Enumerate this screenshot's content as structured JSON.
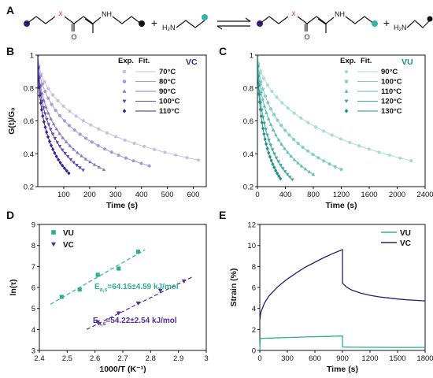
{
  "panel_letters": {
    "A": "A",
    "B": "B",
    "C": "C",
    "D": "D",
    "E": "E"
  },
  "scheme": {
    "atom_x": "x",
    "atom_nh": "NH",
    "amine": "H₂N",
    "plus": "+",
    "colors": {
      "purple": "#3b1a7c",
      "teal": "#2fb4a5",
      "red": "#e83a3a",
      "black": "#111111"
    }
  },
  "chart_data": [
    {
      "panel": "B",
      "type": "scatter",
      "title": "VC",
      "xlabel": "Time (s)",
      "ylabel": "G(t)/G₀",
      "xlim": [
        0,
        650
      ],
      "ylim": [
        0.2,
        1.0
      ],
      "xticks": [
        100,
        200,
        300,
        400,
        500,
        600
      ],
      "yticks": [
        0.2,
        0.4,
        0.6,
        0.8,
        1.0
      ],
      "legend_header": [
        "Exp.",
        "Fit."
      ],
      "legend_position": "top-right",
      "series": [
        {
          "name": "70°C",
          "color": "#c7bfe3",
          "marker": "circle",
          "tau": 600,
          "beta": 0.55,
          "tmax": 620
        },
        {
          "name": "80°C",
          "color": "#a89ad4",
          "marker": "circle",
          "tau": 350,
          "beta": 0.55,
          "tmax": 430
        },
        {
          "name": "90°C",
          "color": "#8a78c4",
          "marker": "triangle-up",
          "tau": 185,
          "beta": 0.55,
          "tmax": 255
        },
        {
          "name": "100°C",
          "color": "#5f4aaa",
          "marker": "triangle-down",
          "tau": 125,
          "beta": 0.55,
          "tmax": 175
        },
        {
          "name": "110°C",
          "color": "#3b258c",
          "marker": "diamond",
          "tau": 78,
          "beta": 0.55,
          "tmax": 120
        }
      ]
    },
    {
      "panel": "C",
      "type": "scatter",
      "title": "VU",
      "xlabel": "Time (s)",
      "ylabel": "",
      "xlim": [
        0,
        2400
      ],
      "ylim": [
        0.2,
        1.0
      ],
      "xticks": [
        0,
        400,
        800,
        1200,
        1600,
        2000,
        2400
      ],
      "yticks": [
        0.2,
        0.4,
        0.6,
        0.8,
        1.0
      ],
      "legend_header": [
        "Exp.",
        "Fit."
      ],
      "legend_position": "top-right",
      "series": [
        {
          "name": "90°C",
          "color": "#a8dcd8",
          "marker": "circle",
          "tau": 2100,
          "beta": 0.6,
          "tmax": 2200
        },
        {
          "name": "100°C",
          "color": "#86cdc7",
          "marker": "circle",
          "tau": 900,
          "beta": 0.6,
          "tmax": 1200
        },
        {
          "name": "110°C",
          "color": "#5fbcb4",
          "marker": "triangle-up",
          "tau": 520,
          "beta": 0.6,
          "tmax": 800
        },
        {
          "name": "120°C",
          "color": "#3aa8a0",
          "marker": "triangle-down",
          "tau": 280,
          "beta": 0.6,
          "tmax": 500
        },
        {
          "name": "130°C",
          "color": "#1f8f87",
          "marker": "diamond",
          "tau": 190,
          "beta": 0.6,
          "tmax": 330
        }
      ]
    },
    {
      "panel": "D",
      "type": "scatter",
      "xlabel": "1000/T (K⁻¹)",
      "ylabel": "ln(τ)",
      "xlim": [
        2.4,
        3.0
      ],
      "ylim": [
        3,
        9
      ],
      "xticks": [
        2.4,
        2.5,
        2.6,
        2.7,
        2.8,
        2.9,
        3.0
      ],
      "yticks": [
        3,
        4,
        5,
        6,
        7,
        8,
        9
      ],
      "legend_position": "top-left",
      "series": [
        {
          "name": "VU",
          "color": "#2fae93",
          "marker": "square",
          "x": [
            2.48,
            2.545,
            2.61,
            2.685,
            2.755
          ],
          "y": [
            5.55,
            5.9,
            6.6,
            6.9,
            7.7
          ],
          "fit": {
            "x": [
              2.44,
              2.78
            ],
            "y": [
              5.2,
              7.8
            ]
          },
          "annotation": {
            "lead": "E",
            "sub": "a,s",
            "value": "=64.15±4.59 kJ/mol"
          }
        },
        {
          "name": "VC",
          "color": "#5a2a9c",
          "marker": "triangle-down",
          "x": [
            2.61,
            2.685,
            2.755,
            2.835,
            2.92
          ],
          "y": [
            4.35,
            4.78,
            5.25,
            5.85,
            6.3
          ],
          "fit": {
            "x": [
              2.57,
              2.95
            ],
            "y": [
              4.0,
              6.5
            ]
          },
          "annotation": {
            "lead": "E",
            "sub": "a,s",
            "value": "=54.22±2.54 kJ/mol"
          }
        }
      ]
    },
    {
      "panel": "E",
      "type": "line",
      "xlabel": "Time (s)",
      "ylabel": "Strain (%)",
      "xlim": [
        0,
        1800
      ],
      "ylim": [
        0,
        12
      ],
      "xticks": [
        0,
        300,
        600,
        900,
        1200,
        1500,
        1800
      ],
      "yticks": [
        0,
        2,
        4,
        6,
        8,
        10,
        12
      ],
      "legend_position": "top-right",
      "series": [
        {
          "name": "VU",
          "color": "#2fae93",
          "x": [
            0,
            5,
            100,
            300,
            500,
            700,
            899,
            900,
            901,
            1000,
            1200,
            1500,
            1800
          ],
          "y": [
            0,
            1.15,
            1.18,
            1.23,
            1.28,
            1.33,
            1.37,
            1.37,
            0.32,
            0.31,
            0.3,
            0.29,
            0.29
          ]
        },
        {
          "name": "VC",
          "color": "#2c1a6e",
          "x": [
            0,
            10,
            50,
            100,
            200,
            300,
            400,
            500,
            600,
            700,
            800,
            900,
            901,
            950,
            1000,
            1100,
            1200,
            1300,
            1400,
            1500,
            1600,
            1700,
            1800
          ],
          "y": [
            2.9,
            3.6,
            4.5,
            5.2,
            6.1,
            6.8,
            7.4,
            7.95,
            8.4,
            8.85,
            9.25,
            9.6,
            6.4,
            6.0,
            5.75,
            5.45,
            5.25,
            5.1,
            5.0,
            4.9,
            4.82,
            4.77,
            4.72
          ]
        }
      ]
    }
  ]
}
